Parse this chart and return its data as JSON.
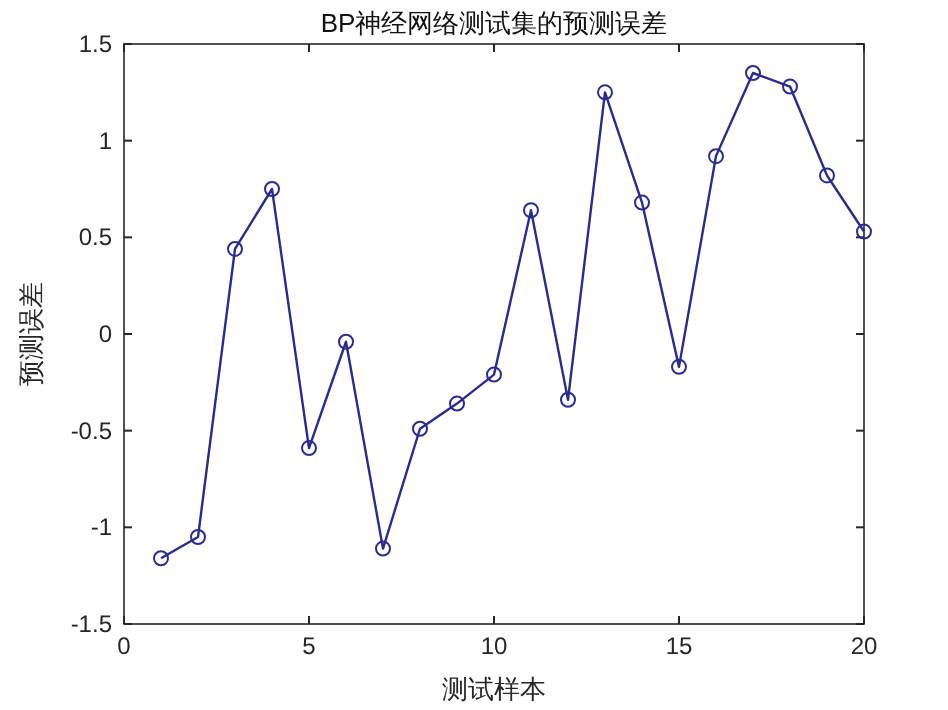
{
  "chart_data": {
    "type": "line",
    "title": "BP神经网络测试集的预测误差",
    "xlabel": "测试样本",
    "ylabel": "预测误差",
    "x": [
      1,
      2,
      3,
      4,
      5,
      6,
      7,
      8,
      9,
      10,
      11,
      12,
      13,
      14,
      15,
      16,
      17,
      18,
      19,
      20
    ],
    "series": [
      {
        "color": "#2b2b8f",
        "values": [
          -1.16,
          -1.05,
          0.44,
          0.75,
          -0.59,
          -0.04,
          -1.11,
          -0.49,
          -0.36,
          -0.21,
          0.64,
          -0.34,
          1.25,
          0.68,
          -0.17,
          0.92,
          1.35,
          1.28,
          0.82,
          0.53
        ]
      }
    ],
    "xlim": [
      0,
      20
    ],
    "xticks": [
      0,
      5,
      10,
      15,
      20
    ],
    "ylim": [
      -1.5,
      1.5
    ],
    "yticks": [
      -1.5,
      -1,
      -0.5,
      0,
      0.5,
      1,
      1.5
    ],
    "marker": "circle",
    "line_style": "solid"
  }
}
